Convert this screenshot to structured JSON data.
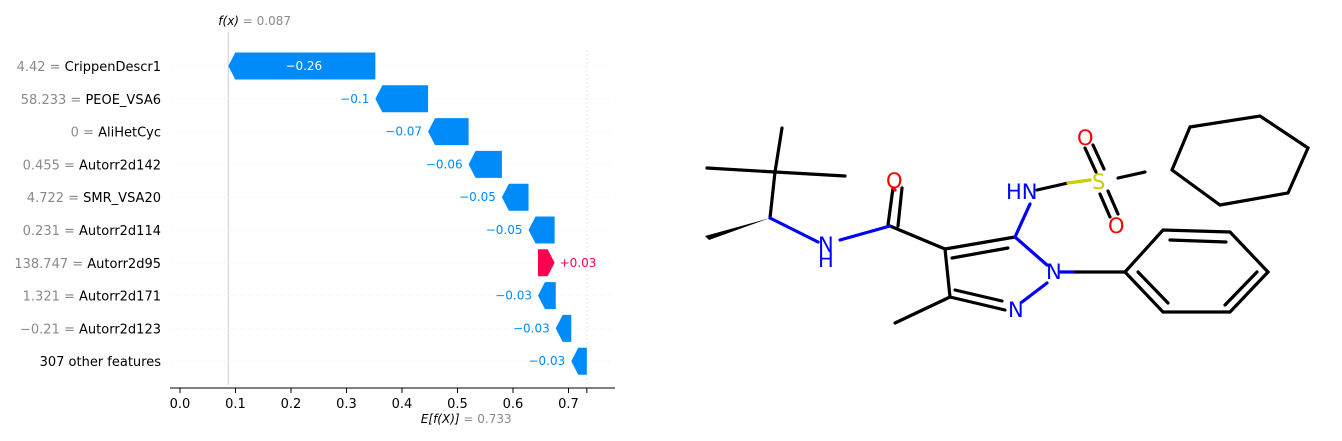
{
  "chart_data": {
    "type": "waterfall",
    "fx": {
      "label": "f(x)",
      "value_text": "= 0.087",
      "value": 0.087
    },
    "base": {
      "label": "E[f(X)]",
      "value_text": "= 0.733",
      "value": 0.733
    },
    "xlim": [
      -0.02,
      0.78
    ],
    "xticks": [
      "0.0",
      "0.1",
      "0.2",
      "0.3",
      "0.4",
      "0.5",
      "0.6",
      "0.7"
    ],
    "xtick_values": [
      0.0,
      0.1,
      0.2,
      0.3,
      0.4,
      0.5,
      0.6,
      0.7
    ],
    "colors": {
      "negative": "#008bfb",
      "positive": "#ff0051",
      "feature_value": "#8a8a8a"
    },
    "bars": [
      {
        "feature_value": "4.42 =",
        "feature": "CrippenDescr1",
        "label": "−0.26",
        "start": 0.352,
        "end": 0.087
      },
      {
        "feature_value": "58.233 =",
        "feature": "PEOE_VSA6",
        "label": "−0.1",
        "start": 0.447,
        "end": 0.352
      },
      {
        "feature_value": "0 =",
        "feature": "AliHetCyc",
        "label": "−0.07",
        "start": 0.52,
        "end": 0.447
      },
      {
        "feature_value": "0.455 =",
        "feature": "Autorr2d142",
        "label": "−0.06",
        "start": 0.58,
        "end": 0.52
      },
      {
        "feature_value": "4.722 =",
        "feature": "SMR_VSA20",
        "label": "−0.05",
        "start": 0.628,
        "end": 0.58
      },
      {
        "feature_value": "0.231 =",
        "feature": "Autorr2d114",
        "label": "−0.05",
        "start": 0.675,
        "end": 0.628
      },
      {
        "feature_value": "138.747 =",
        "feature": "Autorr2d95",
        "label": "+0.03",
        "start": 0.645,
        "end": 0.675
      },
      {
        "feature_value": "1.321 =",
        "feature": "Autorr2d171",
        "label": "−0.03",
        "start": 0.677,
        "end": 0.645
      },
      {
        "feature_value": "−0.21 =",
        "feature": "Autorr2d123",
        "label": "−0.03",
        "start": 0.705,
        "end": 0.677
      },
      {
        "feature_value": "",
        "feature": "307 other features",
        "label": "−0.03",
        "start": 0.733,
        "end": 0.705
      }
    ]
  },
  "molecule": {
    "atoms": {
      "o_carbonyl": "O",
      "nh_amide": "N",
      "h_amide": "H",
      "hn_sulfonamide": "HN",
      "s": "S",
      "o_s1": "O",
      "o_s2": "O",
      "n1": "N",
      "n2": "N"
    },
    "colors": {
      "bond": "#000000",
      "N": "#0000ff",
      "O": "#ff0000",
      "S": "#cccc00"
    }
  }
}
